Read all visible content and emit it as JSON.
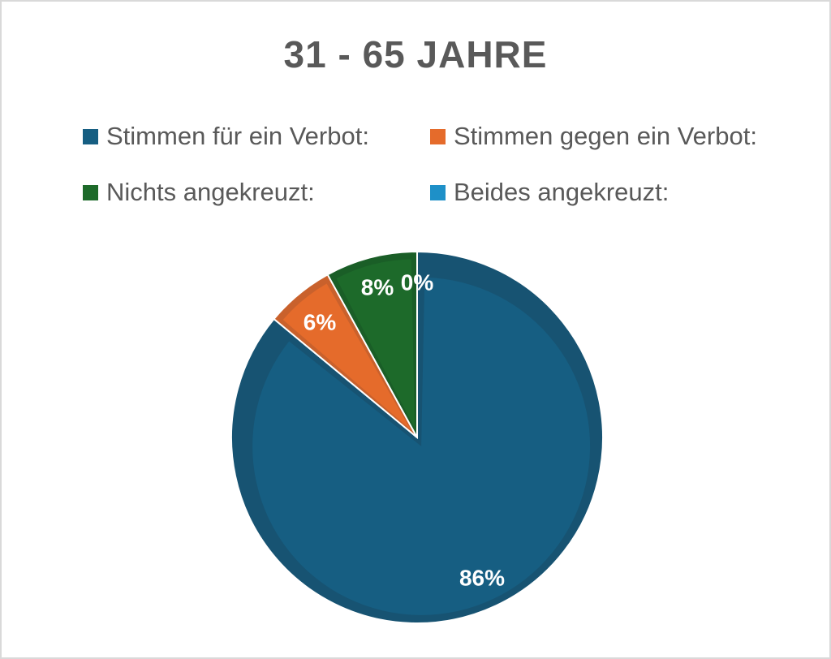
{
  "chart_data": {
    "type": "pie",
    "title": "31 - 65 JAHRE",
    "legend_placement": "top",
    "slices": [
      {
        "label": "Stimmen für ein Verbot:",
        "value": 86,
        "display": "86%",
        "color": "#165E82",
        "edge": "#175372"
      },
      {
        "label": "Stimmen gegen ein Verbot:",
        "value": 6,
        "display": "6%",
        "color": "#E56B2B",
        "edge": "#C9612C"
      },
      {
        "label": "Nichts angekreuzt:",
        "value": 8,
        "display": "8%",
        "color": "#1D6A2A",
        "edge": "#1A5E27"
      },
      {
        "label": "Beides angekreuzt:",
        "value": 0,
        "display": "0%",
        "color": "#1E90C8",
        "edge": "#1A7FB0"
      }
    ]
  }
}
